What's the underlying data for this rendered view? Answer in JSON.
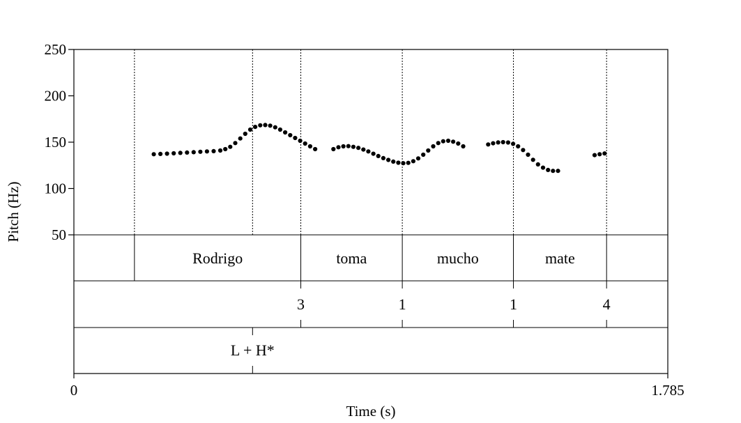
{
  "chart_data": {
    "type": "scatter",
    "ylabel": "Pitch (Hz)",
    "xlabel": "Time (s)",
    "xlim": [
      0,
      1.785
    ],
    "ylim": [
      50,
      250
    ],
    "x_tick_labels": [
      "0",
      "1.785"
    ],
    "y_tick_labels": [
      "250",
      "200",
      "150",
      "100",
      "50"
    ],
    "y_ticks": [
      250,
      200,
      150,
      100,
      50
    ],
    "grid": false,
    "legend": "none",
    "point_color": "#000000",
    "boundaries": [
      0.182,
      0.537,
      0.682,
      0.987,
      1.321,
      1.601
    ],
    "pitch_segments": [
      {
        "points": [
          [
            0.24,
            137
          ],
          [
            0.26,
            137.3
          ],
          [
            0.28,
            137.6
          ],
          [
            0.3,
            138
          ],
          [
            0.32,
            138.4
          ],
          [
            0.34,
            138.8
          ],
          [
            0.36,
            139.2
          ],
          [
            0.38,
            139.6
          ],
          [
            0.4,
            140
          ],
          [
            0.42,
            140.3
          ],
          [
            0.44,
            141
          ],
          [
            0.455,
            142.5
          ],
          [
            0.47,
            145
          ],
          [
            0.485,
            149
          ],
          [
            0.5,
            154
          ],
          [
            0.515,
            159
          ],
          [
            0.53,
            163.5
          ],
          [
            0.545,
            166.5
          ],
          [
            0.56,
            168.2
          ],
          [
            0.575,
            168.5
          ],
          [
            0.59,
            167.8
          ],
          [
            0.605,
            166
          ],
          [
            0.62,
            163.5
          ],
          [
            0.635,
            160.5
          ],
          [
            0.65,
            157.5
          ],
          [
            0.665,
            154.5
          ],
          [
            0.68,
            151.5
          ],
          [
            0.695,
            148.5
          ],
          [
            0.71,
            145.5
          ],
          [
            0.725,
            142.5
          ]
        ]
      },
      {
        "points": [
          [
            0.78,
            142.5
          ],
          [
            0.795,
            144.5
          ],
          [
            0.81,
            145.5
          ],
          [
            0.825,
            145.7
          ],
          [
            0.84,
            145
          ],
          [
            0.855,
            143.8
          ],
          [
            0.87,
            142
          ],
          [
            0.885,
            140
          ],
          [
            0.9,
            137.5
          ],
          [
            0.915,
            135
          ],
          [
            0.93,
            132.8
          ],
          [
            0.945,
            130.8
          ],
          [
            0.96,
            129
          ],
          [
            0.975,
            127.8
          ],
          [
            0.99,
            127.3
          ],
          [
            1.005,
            127.7
          ],
          [
            1.02,
            129.5
          ],
          [
            1.035,
            132.5
          ],
          [
            1.05,
            136.5
          ],
          [
            1.065,
            141
          ],
          [
            1.08,
            145.5
          ],
          [
            1.095,
            149
          ],
          [
            1.11,
            151
          ],
          [
            1.125,
            151.5
          ],
          [
            1.14,
            150.5
          ],
          [
            1.155,
            148.5
          ],
          [
            1.17,
            145.5
          ]
        ]
      },
      {
        "points": [
          [
            1.245,
            147.5
          ],
          [
            1.26,
            148.8
          ],
          [
            1.275,
            149.7
          ],
          [
            1.29,
            150
          ],
          [
            1.305,
            149.6
          ],
          [
            1.32,
            148.2
          ],
          [
            1.335,
            145.5
          ],
          [
            1.35,
            141.5
          ],
          [
            1.365,
            136.5
          ],
          [
            1.38,
            131
          ],
          [
            1.395,
            126
          ],
          [
            1.41,
            122.5
          ],
          [
            1.425,
            120
          ],
          [
            1.44,
            119
          ],
          [
            1.455,
            119
          ]
        ]
      },
      {
        "points": [
          [
            1.565,
            136
          ],
          [
            1.58,
            137
          ],
          [
            1.595,
            137.8
          ]
        ]
      }
    ]
  },
  "tiers": {
    "words": [
      {
        "label": "Rodrigo",
        "start": 0.182,
        "end": 0.682
      },
      {
        "label": "toma",
        "start": 0.682,
        "end": 0.987
      },
      {
        "label": "mucho",
        "start": 0.987,
        "end": 1.321
      },
      {
        "label": "mate",
        "start": 1.321,
        "end": 1.601
      }
    ],
    "breaks": [
      {
        "label": "3",
        "time": 0.682
      },
      {
        "label": "1",
        "time": 0.987
      },
      {
        "label": "1",
        "time": 1.321
      },
      {
        "label": "4",
        "time": 1.601
      }
    ],
    "tones": [
      {
        "label": "L + H*",
        "time": 0.537
      }
    ]
  }
}
